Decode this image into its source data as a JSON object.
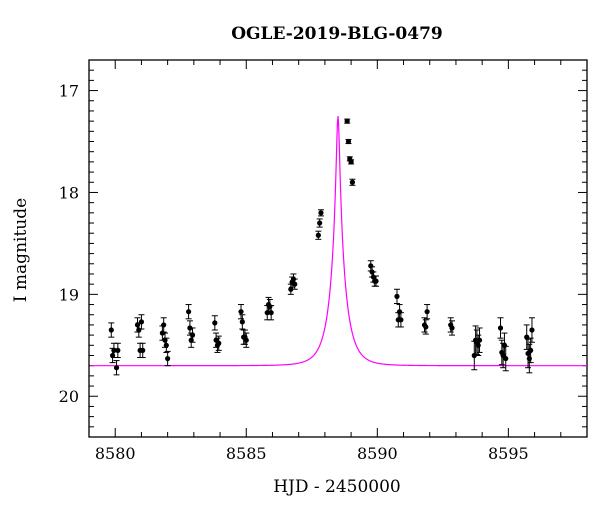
{
  "chart_data": {
    "type": "scatter",
    "title": "OGLE-2019-BLG-0479",
    "xlabel": "HJD - 2450000",
    "ylabel": "I magnitude",
    "xlim": [
      8579.0,
      8598.0
    ],
    "ylim": [
      20.4,
      16.7
    ],
    "y_inverted": true,
    "grid": false,
    "xticks": [
      8580,
      8585,
      8590,
      8595
    ],
    "yticks": [
      17,
      18,
      19,
      20
    ],
    "colors": {
      "model": "#ff00ff",
      "points": "#000000"
    },
    "model": {
      "baseline_mag": 19.7,
      "peak_mag": 17.25,
      "t0": 8588.5,
      "tE": 0.55
    },
    "series": [
      {
        "x": [
          8579.85,
          8579.9,
          8579.95,
          8580.05,
          8580.1,
          8580.85,
          8580.9,
          8580.95,
          8581.0,
          8581.05,
          8581.8,
          8581.85,
          8581.9,
          8581.95,
          8582.0,
          8582.8,
          8582.85,
          8582.9,
          8582.95,
          8583.8,
          8583.85,
          8583.9,
          8583.95,
          8584.8,
          8584.85,
          8584.9,
          8584.95,
          8585.0,
          8585.8,
          8585.85,
          8585.9,
          8585.95,
          8586.7,
          8586.75,
          8586.8,
          8586.85,
          8587.75,
          8587.8,
          8587.85,
          8588.85,
          8588.9,
          8588.95,
          8589.0,
          8589.05,
          8589.75,
          8589.8,
          8589.85,
          8589.9,
          8589.95,
          8590.75,
          8590.8,
          8590.85,
          8590.9,
          8591.8,
          8591.85,
          8591.9,
          8592.8,
          8592.85,
          8593.7,
          8593.75,
          8593.8,
          8593.85,
          8593.9,
          8594.7,
          8594.75,
          8594.8,
          8594.85,
          8594.9,
          8595.7,
          8595.75,
          8595.8,
          8595.85,
          8595.9
        ],
        "y": [
          19.35,
          19.6,
          19.55,
          19.72,
          19.55,
          19.3,
          19.35,
          19.55,
          19.27,
          19.55,
          19.38,
          19.3,
          19.45,
          19.5,
          19.63,
          19.17,
          19.33,
          19.45,
          19.4,
          19.28,
          19.45,
          19.5,
          19.48,
          19.17,
          19.27,
          19.42,
          19.42,
          19.45,
          19.18,
          19.1,
          19.12,
          19.18,
          18.95,
          18.88,
          18.85,
          18.9,
          18.42,
          18.3,
          18.2,
          17.3,
          17.5,
          17.67,
          17.7,
          17.9,
          18.72,
          18.78,
          18.83,
          18.87,
          18.87,
          19.02,
          19.25,
          19.17,
          19.25,
          19.3,
          19.32,
          19.17,
          19.3,
          19.33,
          19.6,
          19.45,
          19.47,
          19.5,
          19.45,
          19.33,
          19.57,
          19.6,
          19.5,
          19.63,
          19.42,
          19.58,
          19.63,
          19.55,
          19.35
        ],
        "errors": [
          0.07,
          0.07,
          0.07,
          0.07,
          0.07,
          0.07,
          0.07,
          0.07,
          0.07,
          0.07,
          0.07,
          0.07,
          0.07,
          0.07,
          0.07,
          0.07,
          0.07,
          0.07,
          0.07,
          0.07,
          0.07,
          0.07,
          0.07,
          0.07,
          0.07,
          0.07,
          0.07,
          0.07,
          0.07,
          0.07,
          0.07,
          0.07,
          0.05,
          0.05,
          0.05,
          0.05,
          0.04,
          0.04,
          0.03,
          0.02,
          0.02,
          0.02,
          0.02,
          0.03,
          0.05,
          0.05,
          0.05,
          0.05,
          0.05,
          0.07,
          0.07,
          0.07,
          0.07,
          0.07,
          0.07,
          0.07,
          0.07,
          0.07,
          0.14,
          0.14,
          0.12,
          0.1,
          0.12,
          0.1,
          0.12,
          0.12,
          0.12,
          0.12,
          0.12,
          0.14,
          0.14,
          0.12,
          0.12
        ]
      }
    ]
  }
}
